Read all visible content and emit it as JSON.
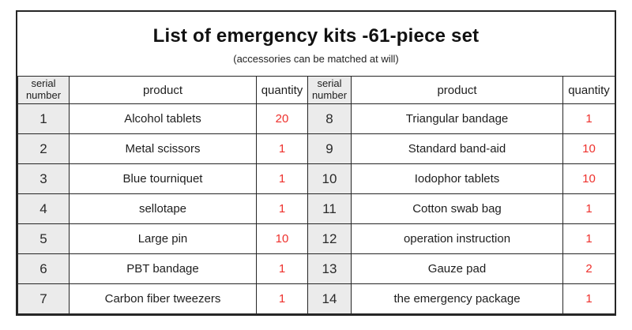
{
  "page": {
    "title": "List of emergency kits -61-piece set",
    "subtitle": "(accessories can be matched at will)"
  },
  "table": {
    "headers": {
      "serial": "serial number",
      "product": "product",
      "quantity": "quantity"
    },
    "left_rows": [
      {
        "serial": "1",
        "product": "Alcohol tablets",
        "quantity": "20"
      },
      {
        "serial": "2",
        "product": "Metal scissors",
        "quantity": "1"
      },
      {
        "serial": "3",
        "product": "Blue tourniquet",
        "quantity": "1"
      },
      {
        "serial": "4",
        "product": "sellotape",
        "quantity": "1"
      },
      {
        "serial": "5",
        "product": "Large pin",
        "quantity": "10"
      },
      {
        "serial": "6",
        "product": "PBT bandage",
        "quantity": "1"
      },
      {
        "serial": "7",
        "product": "Carbon fiber tweezers",
        "quantity": "1"
      }
    ],
    "right_rows": [
      {
        "serial": "8",
        "product": "Triangular bandage",
        "quantity": "1"
      },
      {
        "serial": "9",
        "product": "Standard band-aid",
        "quantity": "10"
      },
      {
        "serial": "10",
        "product": "Iodophor tablets",
        "quantity": "10"
      },
      {
        "serial": "11",
        "product": "Cotton swab bag",
        "quantity": "1"
      },
      {
        "serial": "12",
        "product": "operation instruction",
        "quantity": "1"
      },
      {
        "serial": "13",
        "product": "Gauze pad",
        "quantity": "2"
      },
      {
        "serial": "14",
        "product": "the emergency package",
        "quantity": "1"
      }
    ]
  },
  "colors": {
    "quantity_text": "#ee302c",
    "serial_cell_bg": "#ebebeb",
    "border": "#262626"
  }
}
